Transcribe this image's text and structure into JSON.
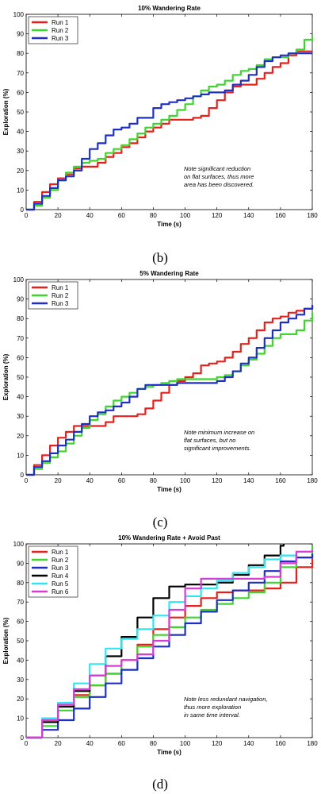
{
  "chart_data": [
    {
      "type": "line",
      "title": "10% Wandering Rate",
      "xlabel": "Time (s)",
      "ylabel": "Exploration (%)",
      "xlim": [
        0,
        180
      ],
      "ylim": [
        0,
        100
      ],
      "xticks": [
        0,
        20,
        40,
        60,
        80,
        100,
        120,
        140,
        160,
        180
      ],
      "yticks": [
        0,
        10,
        20,
        30,
        40,
        50,
        60,
        70,
        80,
        90,
        100
      ],
      "grid": false,
      "legend_position": "top-left",
      "caption": "(b)",
      "note": [
        "Note significant reduction",
        "on flat surfaces, thus more",
        "area has been discovered."
      ],
      "series": [
        {
          "name": "Run 1",
          "color": "#e8201c",
          "x": [
            0,
            5,
            10,
            15,
            20,
            25,
            30,
            35,
            40,
            45,
            50,
            55,
            60,
            65,
            70,
            75,
            80,
            85,
            90,
            95,
            100,
            105,
            110,
            115,
            120,
            125,
            130,
            135,
            140,
            145,
            150,
            155,
            160,
            165,
            170,
            175,
            180
          ],
          "y": [
            0,
            4,
            9,
            13,
            16,
            18,
            21,
            22,
            22,
            24,
            27,
            29,
            32,
            34,
            37,
            40,
            42,
            44,
            46,
            46,
            46,
            47,
            48,
            52,
            56,
            60,
            63,
            64,
            64,
            67,
            70,
            73,
            75,
            79,
            81,
            81,
            81
          ]
        },
        {
          "name": "Run 2",
          "color": "#3ed62e",
          "x": [
            0,
            5,
            10,
            15,
            20,
            25,
            30,
            35,
            40,
            45,
            50,
            55,
            60,
            65,
            70,
            75,
            80,
            85,
            90,
            95,
            100,
            105,
            110,
            115,
            120,
            125,
            130,
            135,
            140,
            145,
            150,
            155,
            160,
            165,
            170,
            175,
            180
          ],
          "y": [
            0,
            2,
            6,
            10,
            15,
            19,
            22,
            24,
            25,
            26,
            29,
            31,
            33,
            36,
            39,
            42,
            44,
            46,
            48,
            51,
            54,
            58,
            61,
            63,
            64,
            66,
            69,
            71,
            72,
            74,
            77,
            78,
            78,
            80,
            82,
            87,
            89
          ]
        },
        {
          "name": "Run 3",
          "color": "#1f2fc4",
          "x": [
            0,
            5,
            10,
            15,
            20,
            25,
            30,
            35,
            40,
            45,
            50,
            55,
            60,
            65,
            70,
            75,
            80,
            85,
            90,
            95,
            100,
            105,
            110,
            115,
            120,
            125,
            130,
            135,
            140,
            145,
            150,
            155,
            160,
            165,
            170,
            175,
            180
          ],
          "y": [
            0,
            3,
            7,
            11,
            15,
            17,
            20,
            26,
            31,
            34,
            38,
            41,
            42,
            44,
            47,
            47,
            52,
            54,
            55,
            56,
            57,
            58,
            59,
            60,
            60,
            61,
            64,
            66,
            69,
            73,
            76,
            78,
            79,
            80,
            80,
            80,
            80
          ]
        }
      ]
    },
    {
      "type": "line",
      "title": "5% Wandering Rate",
      "xlabel": "Time (s)",
      "ylabel": "Exploration (%)",
      "xlim": [
        0,
        180
      ],
      "ylim": [
        0,
        100
      ],
      "xticks": [
        0,
        20,
        40,
        60,
        80,
        100,
        120,
        140,
        160,
        180
      ],
      "yticks": [
        0,
        10,
        20,
        30,
        40,
        50,
        60,
        70,
        80,
        90,
        100
      ],
      "grid": false,
      "legend_position": "top-left",
      "caption": "(c)",
      "note": [
        "Note minimum increase on",
        "flat surfaces, but no",
        "significant improvements."
      ],
      "series": [
        {
          "name": "Run 1",
          "color": "#e8201c",
          "x": [
            0,
            5,
            10,
            15,
            20,
            25,
            30,
            35,
            40,
            45,
            50,
            55,
            60,
            65,
            70,
            75,
            80,
            85,
            90,
            95,
            100,
            105,
            110,
            115,
            120,
            125,
            130,
            135,
            140,
            145,
            150,
            155,
            160,
            165,
            170,
            175,
            180
          ],
          "y": [
            0,
            5,
            10,
            15,
            19,
            22,
            25,
            25,
            25,
            25,
            27,
            30,
            30,
            30,
            31,
            34,
            38,
            42,
            46,
            48,
            50,
            52,
            56,
            57,
            58,
            60,
            63,
            67,
            70,
            74,
            78,
            80,
            81,
            83,
            84,
            85,
            86
          ]
        },
        {
          "name": "Run 2",
          "color": "#3ed62e",
          "x": [
            0,
            5,
            10,
            15,
            20,
            25,
            30,
            35,
            40,
            45,
            50,
            55,
            60,
            65,
            70,
            75,
            80,
            85,
            90,
            95,
            100,
            105,
            110,
            115,
            120,
            125,
            130,
            135,
            140,
            145,
            150,
            155,
            160,
            165,
            170,
            175,
            180
          ],
          "y": [
            0,
            3,
            6,
            9,
            12,
            16,
            20,
            24,
            28,
            31,
            35,
            38,
            40,
            42,
            44,
            45,
            46,
            47,
            48,
            49,
            49,
            49,
            49,
            49,
            50,
            51,
            53,
            56,
            59,
            62,
            66,
            70,
            72,
            72,
            74,
            79,
            83
          ]
        },
        {
          "name": "Run 3",
          "color": "#1f2fc4",
          "x": [
            0,
            5,
            10,
            15,
            20,
            25,
            30,
            35,
            40,
            45,
            50,
            55,
            60,
            65,
            70,
            75,
            80,
            85,
            90,
            95,
            100,
            105,
            110,
            115,
            120,
            125,
            130,
            135,
            140,
            145,
            150,
            155,
            160,
            165,
            170,
            175,
            180
          ],
          "y": [
            0,
            4,
            7,
            11,
            15,
            18,
            22,
            26,
            30,
            32,
            33,
            35,
            37,
            40,
            44,
            46,
            46,
            46,
            46,
            47,
            47,
            47,
            47,
            47,
            48,
            50,
            53,
            57,
            60,
            65,
            70,
            74,
            78,
            80,
            82,
            85,
            87
          ]
        }
      ]
    },
    {
      "type": "line",
      "title": "10% Wandering Rate + Avoid Past",
      "xlabel": "Time (s)",
      "ylabel": "Exploration (%)",
      "xlim": [
        0,
        180
      ],
      "ylim": [
        0,
        100
      ],
      "xticks": [
        0,
        20,
        40,
        60,
        80,
        100,
        120,
        140,
        160,
        180
      ],
      "yticks": [
        0,
        10,
        20,
        30,
        40,
        50,
        60,
        70,
        80,
        90,
        100
      ],
      "grid": false,
      "legend_position": "top-left",
      "caption": "(d)",
      "note": [
        "Note less redundant navigation,",
        "thus more exploration",
        "in same time interval."
      ],
      "series": [
        {
          "name": "Run 1",
          "color": "#e8201c",
          "x": [
            0,
            10,
            20,
            30,
            40,
            50,
            60,
            70,
            80,
            90,
            100,
            110,
            120,
            130,
            140,
            150,
            160,
            170,
            180
          ],
          "y": [
            0,
            9,
            16,
            22,
            27,
            33,
            40,
            48,
            56,
            62,
            68,
            72,
            75,
            76,
            76,
            77,
            80,
            88,
            95
          ]
        },
        {
          "name": "Run 2",
          "color": "#3ed62e",
          "x": [
            0,
            10,
            20,
            30,
            40,
            50,
            60,
            70,
            80,
            90,
            100,
            110,
            120,
            130,
            140,
            150,
            160,
            170,
            180
          ],
          "y": [
            0,
            6,
            14,
            21,
            27,
            33,
            40,
            47,
            53,
            57,
            62,
            66,
            69,
            72,
            75,
            80,
            88,
            93,
            99
          ]
        },
        {
          "name": "Run 3",
          "color": "#1f2fc4",
          "x": [
            0,
            10,
            20,
            30,
            40,
            50,
            60,
            70,
            80,
            90,
            100,
            110,
            120,
            130,
            140,
            150,
            160,
            170,
            180
          ],
          "y": [
            0,
            4,
            9,
            15,
            21,
            28,
            35,
            41,
            47,
            53,
            59,
            65,
            71,
            76,
            80,
            86,
            91,
            93,
            95
          ]
        },
        {
          "name": "Run 4",
          "color": "#000000",
          "x": [
            0,
            10,
            20,
            30,
            40,
            50,
            60,
            70,
            80,
            90,
            100,
            110,
            120,
            130,
            140,
            150,
            160,
            162
          ],
          "y": [
            0,
            8,
            16,
            24,
            32,
            42,
            52,
            62,
            72,
            78,
            79,
            79,
            80,
            84,
            89,
            94,
            99,
            100
          ]
        },
        {
          "name": "Run 5",
          "color": "#2fe6f0",
          "x": [
            0,
            10,
            20,
            30,
            40,
            50,
            60,
            70,
            80,
            90,
            100,
            110,
            120,
            130,
            140,
            150,
            160,
            170,
            180
          ],
          "y": [
            0,
            10,
            18,
            28,
            38,
            46,
            51,
            56,
            63,
            70,
            73,
            77,
            81,
            85,
            88,
            92,
            94,
            96,
            97
          ]
        },
        {
          "name": "Run 6",
          "color": "#d93bd6",
          "x": [
            0,
            10,
            20,
            30,
            40,
            50,
            60,
            70,
            80,
            90,
            100,
            110,
            120,
            130,
            140,
            150,
            160,
            170,
            180
          ],
          "y": [
            0,
            9,
            17,
            25,
            32,
            37,
            40,
            43,
            50,
            66,
            77,
            82,
            82,
            82,
            82,
            83,
            90,
            96,
            97
          ]
        }
      ]
    }
  ]
}
